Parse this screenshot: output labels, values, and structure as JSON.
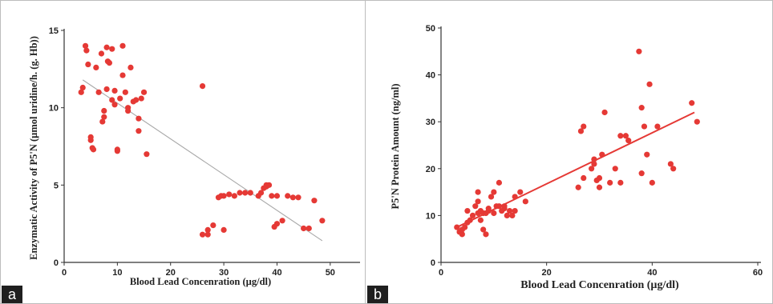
{
  "figure": {
    "panel_labels": [
      "a",
      "b"
    ]
  },
  "chart_data": [
    {
      "type": "scatter",
      "title": "",
      "xlabel": "Blood Lead Concenration (µg/dl)",
      "ylabel": "Enzymatic Activity of P5'N (µmol uridine/h. (g. Hb))",
      "xlim": [
        0,
        55
      ],
      "ylim": [
        0,
        15
      ],
      "xticks": [
        0,
        10,
        20,
        30,
        40,
        50
      ],
      "yticks": [
        0,
        5,
        10,
        15
      ],
      "grid": false,
      "legend": "none",
      "colors": {
        "points": "#e53935",
        "trendline": "#a8a8a8"
      },
      "trendline": {
        "x": [
          3.5,
          48.5
        ],
        "y": [
          11.8,
          1.4
        ]
      },
      "points": {
        "x": [
          3.2,
          3.5,
          4,
          4.2,
          4.5,
          5,
          5,
          5.3,
          5.5,
          6,
          6.5,
          7,
          7.2,
          7.5,
          7.5,
          8,
          8,
          8.2,
          8.5,
          9,
          9,
          9.5,
          9.5,
          10,
          10,
          10.5,
          11,
          11,
          11.5,
          12,
          12,
          12.5,
          13,
          13.5,
          14,
          14,
          14.5,
          15,
          15.5,
          26,
          26,
          27,
          27,
          28,
          29,
          29.5,
          30,
          30,
          31,
          32,
          33,
          34,
          35,
          36.5,
          37,
          37.5,
          38,
          38,
          38.5,
          39,
          39.5,
          40,
          40,
          41,
          42,
          43,
          44,
          45,
          46,
          47,
          48.5
        ],
        "y": [
          11.0,
          11.3,
          14.0,
          13.7,
          12.8,
          8.1,
          7.9,
          7.4,
          7.3,
          12.6,
          11.0,
          13.5,
          9.1,
          9.4,
          9.8,
          13.9,
          11.2,
          13.0,
          12.9,
          13.8,
          10.5,
          10.2,
          11.1,
          7.3,
          7.2,
          10.6,
          14.0,
          12.1,
          11.0,
          10.0,
          9.8,
          12.6,
          10.4,
          10.5,
          9.3,
          8.5,
          10.6,
          11.0,
          7.0,
          11.4,
          1.8,
          1.8,
          2.1,
          2.4,
          4.2,
          4.3,
          2.1,
          4.3,
          4.4,
          4.3,
          4.5,
          4.5,
          4.5,
          4.3,
          4.5,
          4.8,
          5.0,
          4.9,
          5.0,
          4.3,
          2.3,
          2.5,
          4.3,
          2.7,
          4.3,
          4.2,
          4.2,
          2.2,
          2.2,
          4.0,
          2.7
        ]
      }
    },
    {
      "type": "scatter",
      "title": "",
      "xlabel": "Blood Lead Concenration (µg/dl)",
      "ylabel": "P5'N Protein Amount (ng/ml)",
      "xlim": [
        0,
        60
      ],
      "ylim": [
        0,
        50
      ],
      "xticks": [
        0,
        20,
        40,
        60
      ],
      "yticks": [
        0,
        10,
        20,
        30,
        40,
        50
      ],
      "grid": false,
      "legend": "none",
      "colors": {
        "points": "#e53935",
        "trendline": "#e53935"
      },
      "trendline": {
        "x": [
          3,
          48
        ],
        "y": [
          7.5,
          32
        ]
      },
      "points": {
        "x": [
          3,
          3.5,
          4,
          4,
          4.5,
          5,
          5,
          5.5,
          6,
          6.5,
          7,
          7,
          7,
          7.5,
          7.5,
          8,
          8,
          8.5,
          8.5,
          9,
          9,
          9.5,
          10,
          10,
          10.5,
          11,
          11,
          11.5,
          12,
          12,
          12.5,
          13,
          13.5,
          14,
          14,
          15,
          16,
          26,
          26.5,
          27,
          27,
          28.5,
          29,
          29,
          29.5,
          30,
          30,
          30.5,
          31,
          32,
          33,
          34,
          34,
          35,
          35.5,
          37.5,
          38,
          38,
          38.5,
          39,
          39.5,
          40,
          41,
          43.5,
          44,
          47.5,
          48.5
        ],
        "y": [
          7.5,
          6.5,
          6,
          7,
          7.5,
          11,
          8.5,
          9,
          10,
          12,
          10.5,
          13,
          15,
          9,
          11,
          7,
          10.5,
          10.5,
          6,
          11,
          11.5,
          14,
          15,
          10.5,
          12,
          12,
          17,
          11,
          11.5,
          12,
          10,
          11,
          10,
          11,
          14,
          15,
          13,
          16,
          28,
          29,
          18,
          20,
          22,
          21,
          17.5,
          16,
          18,
          23,
          32,
          17,
          20,
          17,
          27,
          27,
          26,
          45,
          33,
          19,
          29,
          23,
          38,
          17,
          29,
          21,
          20,
          34,
          30
        ]
      }
    }
  ]
}
